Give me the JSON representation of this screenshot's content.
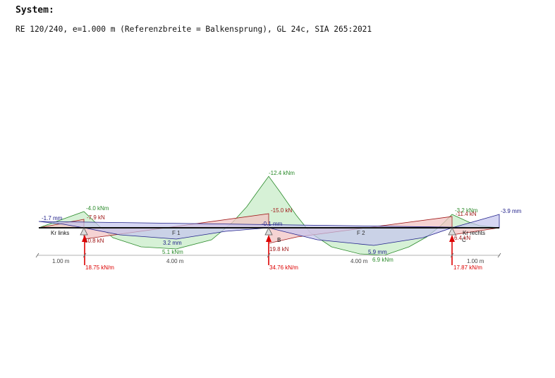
{
  "header": {
    "title": "System:",
    "description": "RE 120/240, e=1.000 m (Referenzbreite = Balkensprung), GL 24c, SIA 265:2021"
  },
  "colors": {
    "moment": "#2a8a2a",
    "moment_fill": "#c8ecc8",
    "shear": "#a01818",
    "shear_fill": "#f2c4c4",
    "deflection": "#20208a",
    "deflection_fill": "#c4c4ee",
    "reaction": "#dd0000",
    "beam": "#111111",
    "dimension": "#444444"
  },
  "diagram": {
    "supports": [
      {
        "name": "",
        "reaction": "18.75 kN/m"
      },
      {
        "name": "B",
        "reaction": "34.76 kN/m"
      },
      {
        "name": "C",
        "reaction": "17.87 kN/m"
      }
    ],
    "segments": [
      {
        "name": "Kr links",
        "length": "1.00 m"
      },
      {
        "name": "F 1",
        "length": "4.00 m"
      },
      {
        "name": "F 2",
        "length": "4.00 m"
      },
      {
        "name": "Kr rechts",
        "length": "1.00 m"
      }
    ],
    "moment_labels": [
      "-4.0 kNm",
      "5.1 kNm",
      "-12.4 kNm",
      "6.9 kNm",
      "-3.2 kNm"
    ],
    "shear_labels": [
      "-7.9 kN",
      "10.8 kN",
      "-15.0 kN",
      "19.8 kN",
      "-11.4 kN",
      "6.4 kN"
    ],
    "deflection_labels": [
      "-1.7 mm",
      "3.2 mm",
      "-0.1 mm",
      "5.9 mm",
      "-3.9 mm"
    ]
  }
}
